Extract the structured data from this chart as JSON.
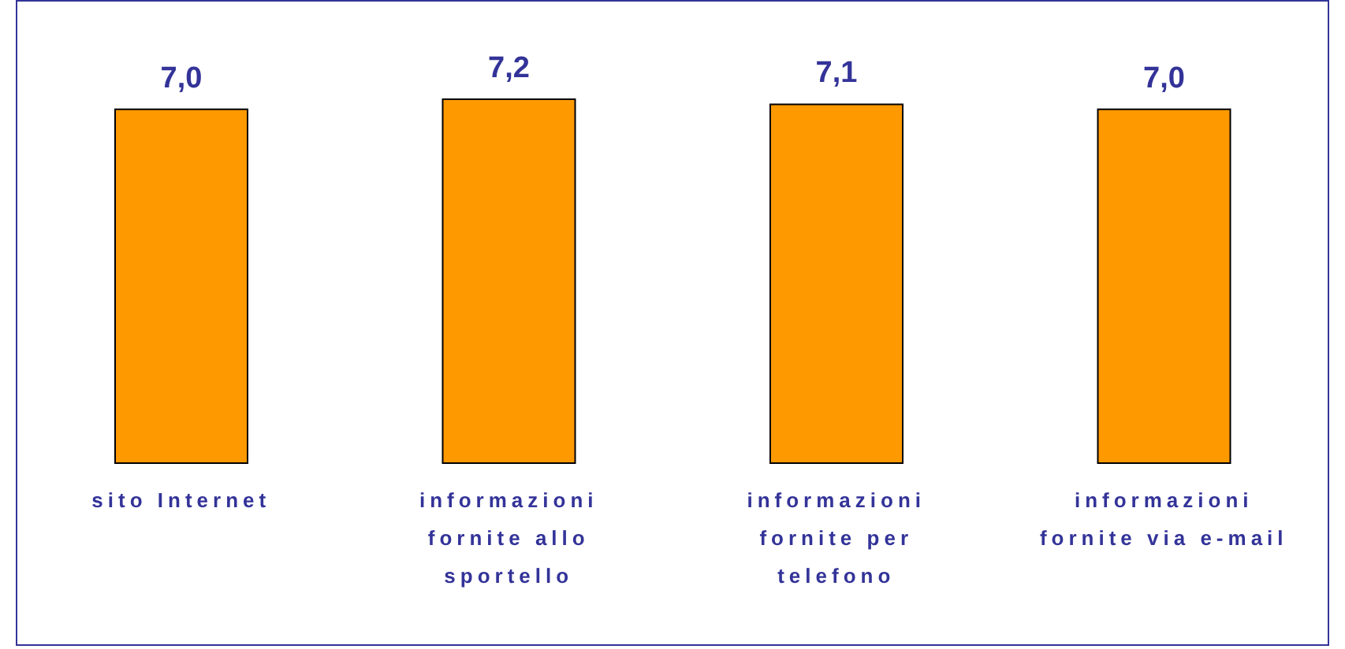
{
  "chart_data": {
    "type": "bar",
    "categories": [
      "sito Internet",
      "informazioni fornite allo sportello",
      "informazioni fornite per telefono",
      "informazioni fornite via e-mail"
    ],
    "values": [
      7.0,
      7.2,
      7.1,
      7.0
    ],
    "value_labels": [
      "7,0",
      "7,2",
      "7,1",
      "7,0"
    ],
    "color": "#ff9900"
  }
}
